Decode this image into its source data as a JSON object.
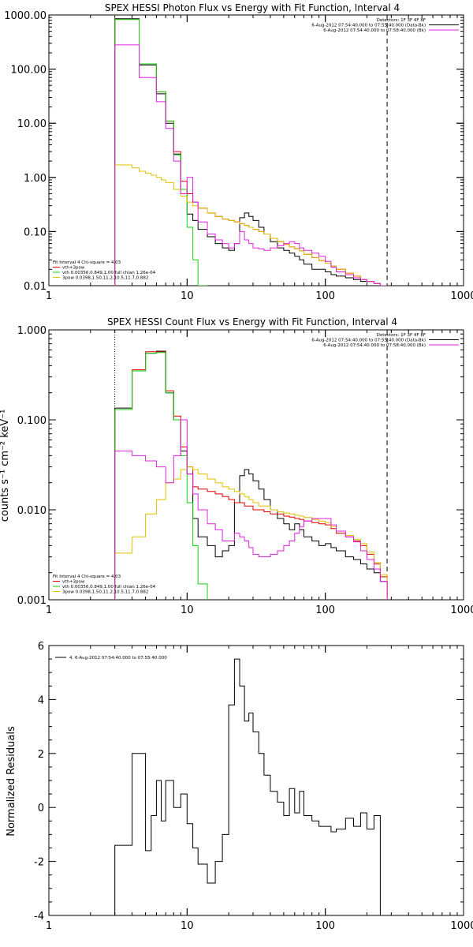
{
  "colors": {
    "black": "#000000",
    "red": "#e00000",
    "magenta": "#e020e0",
    "green": "#10d010",
    "yellow": "#e0c000",
    "orange": "#e07000"
  },
  "chart_data": [
    {
      "type": "line",
      "title": "SPEX HESSI Photon Flux vs Energy with Fit Function, Interval 4",
      "xscale": "log",
      "yscale": "log",
      "xlim": [
        1,
        1000
      ],
      "ylim": [
        0.01,
        1000
      ],
      "xticks": [
        "1",
        "10",
        "100",
        "1000"
      ],
      "yticks": [
        "0.01",
        "0.10",
        "1.00",
        "10.00",
        "100.00",
        "1000.00"
      ],
      "info_top": [
        "Detectors: 1F 3F 4F 8F",
        "6-Aug-2012 07:54:40.000 to 07:55:40.000 (Data-Bk)",
        "6-Aug-2012 07:54:40.000 to 07:58:40.000 (Bk)"
      ],
      "info_bottom": [
        "Fit Interval  4   Chi-square = 4.03",
        "vth+3pow",
        "vth 0.00356,0.849,1.00  full chian 1.26e-04",
        "3pow 0.0398,1.50,11.2,10.5,11.7,0.882"
      ],
      "vlines": [
        {
          "x": 3,
          "style": "dotted",
          "color": "#e07000"
        },
        {
          "x": 280,
          "style": "dashed",
          "color": "#000000"
        }
      ],
      "energy_edges": [
        3,
        3.5,
        4,
        4.5,
        5,
        5.5,
        6,
        6.5,
        7,
        8,
        9,
        10,
        11,
        12,
        14,
        16,
        18,
        20,
        22,
        24,
        26,
        28,
        30,
        33,
        36,
        40,
        45,
        50,
        55,
        60,
        65,
        70,
        80,
        90,
        100,
        110,
        120,
        140,
        160,
        180,
        200,
        225,
        250,
        280
      ],
      "series": [
        {
          "name": "Data-Bk",
          "color": "#000000",
          "values": [
            850,
            850,
            850,
            120,
            120,
            120,
            35,
            35,
            10,
            2.7,
            0.6,
            0.21,
            0.16,
            0.11,
            0.08,
            0.06,
            0.05,
            0.045,
            0.06,
            0.18,
            0.22,
            0.19,
            0.16,
            0.12,
            0.09,
            0.065,
            0.05,
            0.045,
            0.04,
            0.035,
            0.03,
            0.025,
            0.02,
            0.02,
            0.018,
            0.016,
            0.015,
            0.014,
            0.013,
            0.012,
            0.012,
            0.011,
            0.01
          ]
        },
        {
          "name": "vth+3pow",
          "color": "#e00000",
          "values": [
            830,
            830,
            830,
            125,
            125,
            125,
            38,
            38,
            11,
            3.0,
            0.85,
            0.5,
            0.35,
            0.27,
            0.22,
            0.19,
            0.17,
            0.16,
            0.15,
            0.14,
            0.13,
            0.12,
            0.11,
            0.1,
            0.09,
            0.075,
            0.065,
            0.058,
            0.052,
            0.048,
            0.044,
            0.038,
            0.033,
            0.029,
            0.026,
            0.023,
            0.02,
            0.017,
            0.015,
            0.013,
            0.012,
            0.011,
            0.01
          ]
        },
        {
          "name": "vth",
          "color": "#10d010",
          "values": [
            830,
            830,
            830,
            125,
            125,
            125,
            38,
            38,
            11,
            2.6,
            0.6,
            0.12,
            0.03,
            0.01
          ]
        },
        {
          "name": "3pow",
          "color": "#e0c000",
          "values": [
            1.7,
            1.7,
            1.5,
            1.3,
            1.2,
            1.1,
            1.0,
            0.9,
            0.8,
            0.6,
            0.45,
            0.35,
            0.3,
            0.27,
            0.22,
            0.19,
            0.17,
            0.16,
            0.15,
            0.14,
            0.13,
            0.12,
            0.11,
            0.1,
            0.09,
            0.075,
            0.065,
            0.058,
            0.052,
            0.048,
            0.044,
            0.038,
            0.033,
            0.029,
            0.026,
            0.023,
            0.02,
            0.017,
            0.015,
            0.013,
            0.012,
            0.011,
            0.01
          ]
        },
        {
          "name": "Bk",
          "color": "#e020e0",
          "values": [
            280,
            280,
            280,
            70,
            70,
            70,
            25,
            25,
            8,
            2.0,
            0.5,
            1.0,
            0.35,
            0.15,
            0.09,
            0.07,
            0.06,
            0.05,
            0.06,
            0.1,
            0.07,
            0.06,
            0.05,
            0.048,
            0.045,
            0.05,
            0.055,
            0.06,
            0.065,
            0.06,
            0.05,
            0.045,
            0.04,
            0.035,
            0.028,
            0.022,
            0.018,
            0.016,
            0.014,
            0.013,
            0.012,
            0.011,
            0.01
          ]
        }
      ]
    },
    {
      "type": "line",
      "title": "SPEX HESSI Count Flux vs Energy with Fit Function, Interval 4",
      "xscale": "log",
      "yscale": "log",
      "xlim": [
        1,
        1000
      ],
      "ylim": [
        0.001,
        1
      ],
      "xticks": [
        "1",
        "10",
        "100",
        "1000"
      ],
      "yticks": [
        "0.001",
        "0.010",
        "0.100",
        "1.000"
      ],
      "ylabel": "counts s⁻¹ cm⁻² keV⁻¹",
      "info_top": [
        "Detectors: 1F 3F 4F 8F",
        "6-Aug-2012 07:54:40.000 to 07:55:40.000 (Data-Bk)",
        "6-Aug-2012 07:54:40.000 to 07:58:40.000 (Bk)"
      ],
      "info_bottom": [
        "Fit Interval  4   Chi-square = 4.03",
        "vth+3pow",
        "vth 0.00356,0.849,1.00  full chian 1.26e-04",
        "3pow 0.0398,1.50,11.2,10.5,11.7,0.882"
      ],
      "vlines": [
        {
          "x": 3,
          "style": "dotted",
          "color": "#000000"
        },
        {
          "x": 280,
          "style": "dashed",
          "color": "#000000"
        }
      ],
      "energy_edges": [
        3,
        3.5,
        4,
        4.5,
        5,
        5.5,
        6,
        6.5,
        7,
        8,
        9,
        10,
        11,
        12,
        14,
        16,
        18,
        20,
        22,
        24,
        26,
        28,
        30,
        33,
        36,
        40,
        45,
        50,
        55,
        60,
        65,
        70,
        80,
        90,
        100,
        110,
        120,
        140,
        160,
        180,
        200,
        225,
        250,
        280
      ],
      "series": [
        {
          "name": "Data-Bk",
          "color": "#000000",
          "values": [
            0.135,
            0.135,
            0.35,
            0.35,
            0.55,
            0.55,
            0.58,
            0.58,
            0.2,
            0.1,
            0.045,
            0.025,
            0.008,
            0.005,
            0.004,
            0.003,
            0.0035,
            0.004,
            0.012,
            0.024,
            0.028,
            0.025,
            0.021,
            0.017,
            0.013,
            0.01,
            0.008,
            0.007,
            0.006,
            0.007,
            0.006,
            0.005,
            0.0045,
            0.004,
            0.0042,
            0.0038,
            0.0035,
            0.003,
            0.0028,
            0.0025,
            0.0022,
            0.002,
            0.0016
          ]
        },
        {
          "name": "vth+3pow",
          "color": "#e00000",
          "values": [
            0.13,
            0.13,
            0.36,
            0.36,
            0.57,
            0.57,
            0.57,
            0.57,
            0.21,
            0.11,
            0.05,
            0.03,
            0.018,
            0.017,
            0.016,
            0.015,
            0.014,
            0.013,
            0.012,
            0.012,
            0.011,
            0.011,
            0.01,
            0.01,
            0.0095,
            0.009,
            0.009,
            0.0085,
            0.0083,
            0.008,
            0.0078,
            0.0075,
            0.0072,
            0.007,
            0.0068,
            0.0062,
            0.0055,
            0.005,
            0.0045,
            0.004,
            0.0032,
            0.0025,
            0.0018
          ]
        },
        {
          "name": "vth",
          "color": "#10d010",
          "values": [
            0.13,
            0.13,
            0.35,
            0.35,
            0.55,
            0.55,
            0.56,
            0.56,
            0.2,
            0.1,
            0.04,
            0.012,
            0.004,
            0.0015
          ]
        },
        {
          "name": "3pow",
          "color": "#e0c000",
          "values": [
            0.0033,
            0.0033,
            0.005,
            0.005,
            0.009,
            0.009,
            0.013,
            0.013,
            0.02,
            0.022,
            0.028,
            0.03,
            0.028,
            0.025,
            0.022,
            0.02,
            0.018,
            0.017,
            0.016,
            0.015,
            0.014,
            0.013,
            0.012,
            0.011,
            0.011,
            0.01,
            0.0095,
            0.0092,
            0.009,
            0.0087,
            0.0085,
            0.0082,
            0.0078,
            0.0075,
            0.0072,
            0.0065,
            0.0058,
            0.0052,
            0.0047,
            0.0042,
            0.0034,
            0.0026,
            0.0019
          ]
        },
        {
          "name": "Bk",
          "color": "#e020e0",
          "values": [
            0.045,
            0.045,
            0.04,
            0.04,
            0.035,
            0.035,
            0.03,
            0.03,
            0.02,
            0.04,
            0.1,
            0.025,
            0.015,
            0.01,
            0.007,
            0.006,
            0.0045,
            0.0045,
            0.0055,
            0.005,
            0.0045,
            0.0038,
            0.0032,
            0.003,
            0.003,
            0.0032,
            0.0035,
            0.004,
            0.0045,
            0.0055,
            0.0065,
            0.0075,
            0.008,
            0.008,
            0.008,
            0.0068,
            0.0058,
            0.005,
            0.0044,
            0.0035,
            0.0028,
            0.0022,
            0.0016
          ]
        }
      ]
    },
    {
      "type": "line",
      "title": "",
      "xscale": "log",
      "yscale": "linear",
      "xlim": [
        1,
        1000
      ],
      "ylim": [
        -4,
        6
      ],
      "xticks": [
        "1",
        "10",
        "100",
        "1000"
      ],
      "yticks": [
        "-4",
        "-2",
        "0",
        "2",
        "4",
        "6"
      ],
      "ylabel": "Normalized Residuals",
      "legend": "4.  6-Aug-2012 07:54:40.000 to 07:55:40.000",
      "energy_edges": [
        3,
        3.5,
        4,
        4.5,
        5,
        5.5,
        6,
        6.5,
        7,
        8,
        9,
        10,
        11,
        12,
        14,
        16,
        18,
        20,
        22,
        24,
        26,
        28,
        30,
        33,
        36,
        40,
        45,
        50,
        55,
        60,
        65,
        70,
        80,
        90,
        100,
        110,
        120,
        140,
        160,
        180,
        200,
        225,
        250,
        280
      ],
      "series": [
        {
          "name": "4.  6-Aug-2012 07:54:40.000 to 07:55:40.000",
          "color": "#000000",
          "values": [
            -1.4,
            -1.4,
            2.0,
            2.0,
            -1.6,
            -0.3,
            1.0,
            -0.5,
            1.0,
            0.0,
            0.5,
            -0.6,
            -1.5,
            -2.1,
            -2.8,
            -2.0,
            -1.0,
            3.8,
            5.5,
            4.5,
            3.2,
            3.5,
            2.8,
            2.0,
            1.2,
            0.6,
            0.2,
            -0.3,
            0.7,
            -0.2,
            0.6,
            -0.3,
            -0.5,
            -0.7,
            -0.7,
            -0.9,
            -0.8,
            -0.4,
            -0.7,
            -0.2,
            -0.8,
            -0.3,
            -4.2
          ]
        }
      ]
    }
  ]
}
